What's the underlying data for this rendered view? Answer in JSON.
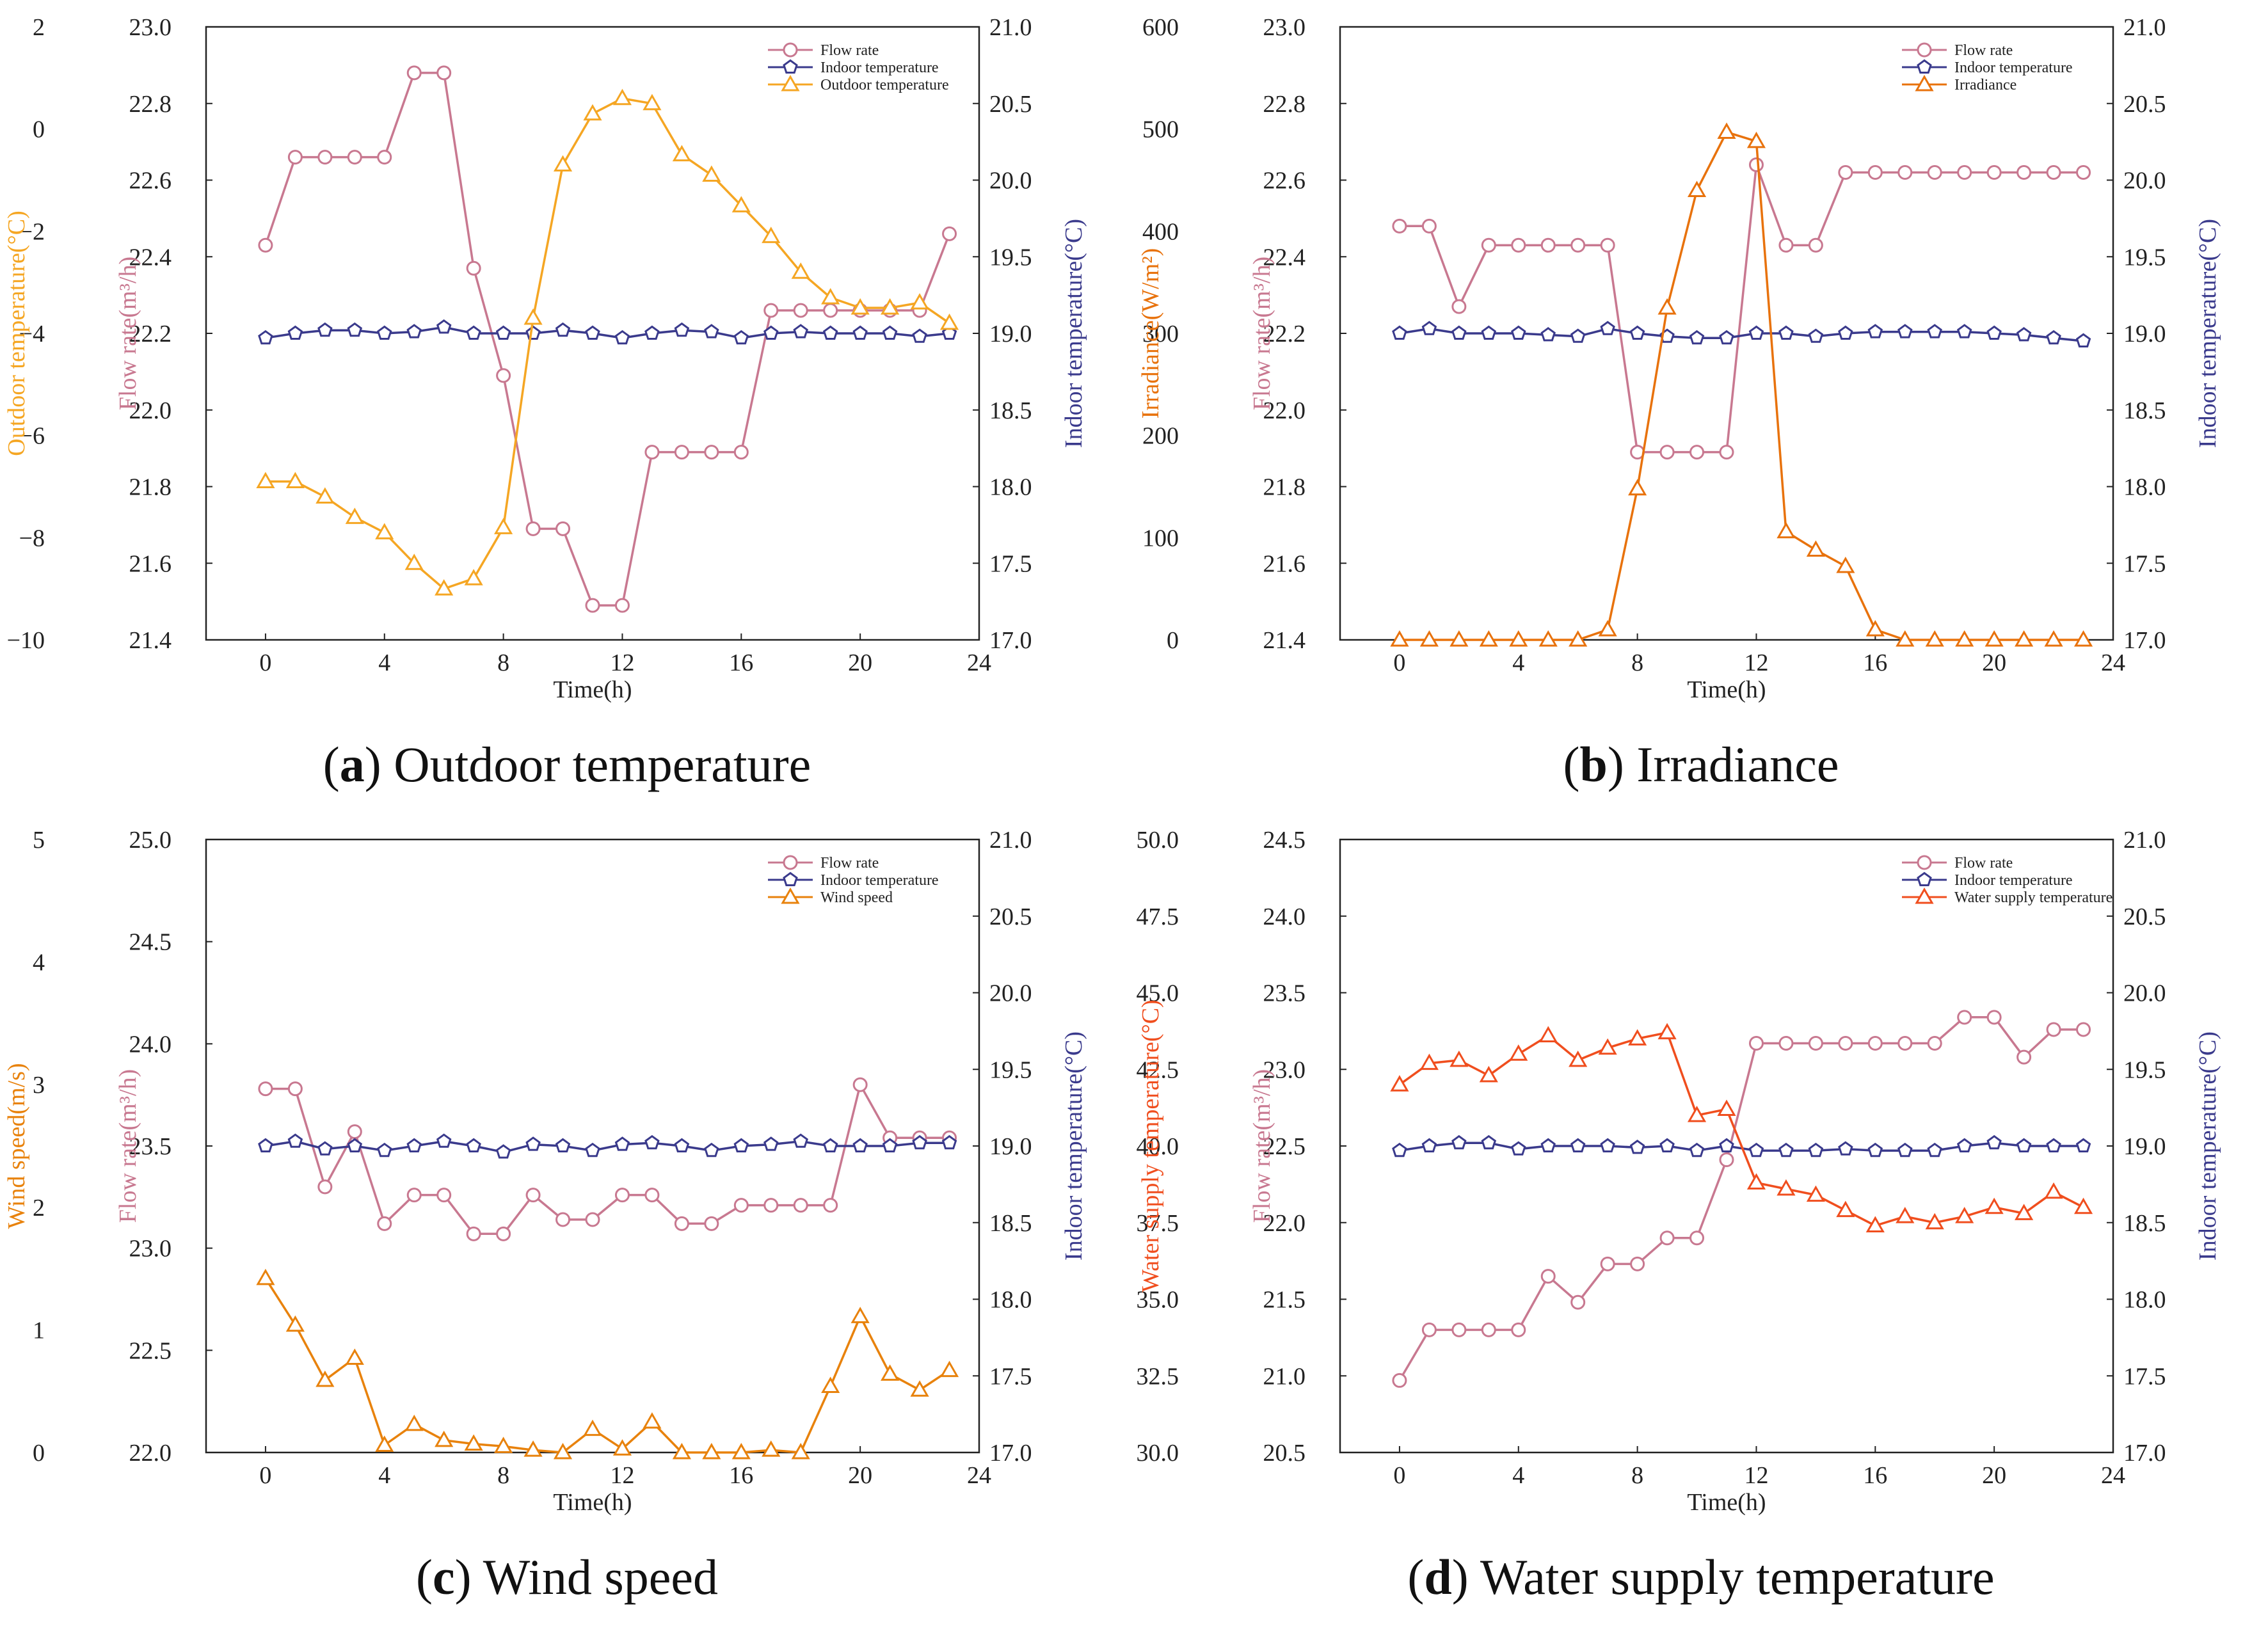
{
  "colors": {
    "flow": "#c87890",
    "indoor": "#3a3a8c",
    "outdoor": "#f5a623",
    "irradiance": "#e8720c",
    "wind": "#e8820c",
    "water": "#f04e1e",
    "axis": "#222222"
  },
  "captions": [
    {
      "letter": "a",
      "text": "Outdoor temperature"
    },
    {
      "letter": "b",
      "text": "Irradiance"
    },
    {
      "letter": "c",
      "text": "Wind speed"
    },
    {
      "letter": "d",
      "text": "Water supply temperature"
    }
  ],
  "chart_data": [
    {
      "type": "line",
      "xlabel": "Time(h)",
      "xlim": [
        -2,
        24
      ],
      "xticks": [
        0,
        4,
        8,
        12,
        16,
        20,
        24
      ],
      "axes": {
        "outer": {
          "label": "Outdoor temperature(°C)",
          "lim": [
            -10,
            2
          ],
          "ticks": [
            -10,
            -8,
            -6,
            -4,
            -2,
            0,
            2
          ],
          "tick_labels": [
            "−10",
            "−8",
            "−6",
            "−4",
            "−2",
            "0",
            "2"
          ]
        },
        "left": {
          "label": "Flow rate(m³/h)",
          "lim": [
            21.4,
            23.0
          ],
          "ticks": [
            21.4,
            21.6,
            21.8,
            22.0,
            22.2,
            22.4,
            22.6,
            22.8,
            23.0
          ],
          "tick_labels": [
            "21.4",
            "21.6",
            "21.8",
            "22.0",
            "22.2",
            "22.4",
            "22.6",
            "22.8",
            "23.0"
          ]
        },
        "right": {
          "label": "Indoor temperature(°C)",
          "lim": [
            17.0,
            21.0
          ],
          "ticks": [
            17.0,
            17.5,
            18.0,
            18.5,
            19.0,
            19.5,
            20.0,
            20.5,
            21.0
          ],
          "tick_labels": [
            "17.0",
            "17.5",
            "18.0",
            "18.5",
            "19.0",
            "19.5",
            "20.0",
            "20.5",
            "21.0"
          ]
        }
      },
      "x": [
        0,
        1,
        2,
        3,
        4,
        5,
        6,
        7,
        8,
        9,
        10,
        11,
        12,
        13,
        14,
        15,
        16,
        17,
        18,
        19,
        20,
        21,
        22,
        23
      ],
      "series": [
        {
          "name": "Flow rate",
          "axis": "left",
          "marker": "circle",
          "color_key": "flow",
          "values": [
            22.43,
            22.66,
            22.66,
            22.66,
            22.66,
            22.88,
            22.88,
            22.37,
            22.09,
            21.69,
            21.69,
            21.49,
            21.49,
            21.89,
            21.89,
            21.89,
            21.89,
            22.26,
            22.26,
            22.26,
            22.26,
            22.26,
            22.26,
            22.46
          ]
        },
        {
          "name": "Indoor temperature",
          "axis": "right",
          "marker": "pentagon",
          "color_key": "indoor",
          "values": [
            18.97,
            19.0,
            19.02,
            19.02,
            19.0,
            19.01,
            19.04,
            19.0,
            19.0,
            19.0,
            19.02,
            19.0,
            18.97,
            19.0,
            19.02,
            19.01,
            18.97,
            19.0,
            19.01,
            19.0,
            19.0,
            19.0,
            18.98,
            19.0
          ]
        },
        {
          "name": "Outdoor temperature",
          "axis": "outer",
          "marker": "triangle",
          "color_key": "outdoor",
          "values": [
            -6.9,
            -6.9,
            -7.2,
            -7.6,
            -7.9,
            -8.5,
            -9.0,
            -8.8,
            -7.8,
            -3.7,
            -0.7,
            0.3,
            0.6,
            0.5,
            -0.5,
            -0.9,
            -1.5,
            -2.1,
            -2.8,
            -3.3,
            -3.5,
            -3.5,
            -3.4,
            -3.8
          ]
        }
      ]
    },
    {
      "type": "line",
      "xlabel": "Time(h)",
      "xlim": [
        -2,
        24
      ],
      "xticks": [
        0,
        4,
        8,
        12,
        16,
        20,
        24
      ],
      "axes": {
        "outer": {
          "label": "Irradiance(W/m²)",
          "lim": [
            0,
            600
          ],
          "ticks": [
            0,
            100,
            200,
            300,
            400,
            500,
            600
          ],
          "tick_labels": [
            "0",
            "100",
            "200",
            "300",
            "400",
            "500",
            "600"
          ]
        },
        "left": {
          "label": "Flow rate(m³/h)",
          "lim": [
            21.4,
            23.0
          ],
          "ticks": [
            21.4,
            21.6,
            21.8,
            22.0,
            22.2,
            22.4,
            22.6,
            22.8,
            23.0
          ],
          "tick_labels": [
            "21.4",
            "21.6",
            "21.8",
            "22.0",
            "22.2",
            "22.4",
            "22.6",
            "22.8",
            "23.0"
          ]
        },
        "right": {
          "label": "Indoor temperature(°C)",
          "lim": [
            17.0,
            21.0
          ],
          "ticks": [
            17.0,
            17.5,
            18.0,
            18.5,
            19.0,
            19.5,
            20.0,
            20.5,
            21.0
          ],
          "tick_labels": [
            "17.0",
            "17.5",
            "18.0",
            "18.5",
            "19.0",
            "19.5",
            "20.0",
            "20.5",
            "21.0"
          ]
        }
      },
      "x": [
        0,
        1,
        2,
        3,
        4,
        5,
        6,
        7,
        8,
        9,
        10,
        11,
        12,
        13,
        14,
        15,
        16,
        17,
        18,
        19,
        20,
        21,
        22,
        23
      ],
      "series": [
        {
          "name": "Flow rate",
          "axis": "left",
          "marker": "circle",
          "color_key": "flow",
          "values": [
            22.48,
            22.48,
            22.27,
            22.43,
            22.43,
            22.43,
            22.43,
            22.43,
            21.89,
            21.89,
            21.89,
            21.89,
            22.64,
            22.43,
            22.43,
            22.62,
            22.62,
            22.62,
            22.62,
            22.62,
            22.62,
            22.62,
            22.62,
            22.62
          ]
        },
        {
          "name": "Indoor temperature",
          "axis": "right",
          "marker": "pentagon",
          "color_key": "indoor",
          "values": [
            19.0,
            19.03,
            19.0,
            19.0,
            19.0,
            18.99,
            18.98,
            19.03,
            19.0,
            18.98,
            18.97,
            18.97,
            19.0,
            19.0,
            18.98,
            19.0,
            19.01,
            19.01,
            19.01,
            19.01,
            19.0,
            18.99,
            18.97,
            18.95
          ]
        },
        {
          "name": "Irradiance",
          "axis": "outer",
          "marker": "triangle",
          "color_key": "irradiance",
          "values": [
            0,
            0,
            0,
            0,
            0,
            0,
            0,
            10,
            148,
            325,
            440,
            497,
            488,
            106,
            88,
            72,
            10,
            0,
            0,
            0,
            0,
            0,
            0,
            0
          ]
        }
      ]
    },
    {
      "type": "line",
      "xlabel": "Time(h)",
      "xlim": [
        -2,
        24
      ],
      "xticks": [
        0,
        4,
        8,
        12,
        16,
        20,
        24
      ],
      "axes": {
        "outer": {
          "label": "Wind speed(m/s)",
          "lim": [
            0,
            5
          ],
          "ticks": [
            0,
            1,
            2,
            3,
            4,
            5
          ],
          "tick_labels": [
            "0",
            "1",
            "2",
            "3",
            "4",
            "5"
          ]
        },
        "left": {
          "label": "Flow rate(m³/h)",
          "lim": [
            22.0,
            25.0
          ],
          "ticks": [
            22.0,
            22.5,
            23.0,
            23.5,
            24.0,
            24.5,
            25.0
          ],
          "tick_labels": [
            "22.0",
            "22.5",
            "23.0",
            "23.5",
            "24.0",
            "24.5",
            "25.0"
          ]
        },
        "right": {
          "label": "Indoor temperature(°C)",
          "lim": [
            17.0,
            21.0
          ],
          "ticks": [
            17.0,
            17.5,
            18.0,
            18.5,
            19.0,
            19.5,
            20.0,
            20.5,
            21.0
          ],
          "tick_labels": [
            "17.0",
            "17.5",
            "18.0",
            "18.5",
            "19.0",
            "19.5",
            "20.0",
            "20.5",
            "21.0"
          ]
        }
      },
      "x": [
        0,
        1,
        2,
        3,
        4,
        5,
        6,
        7,
        8,
        9,
        10,
        11,
        12,
        13,
        14,
        15,
        16,
        17,
        18,
        19,
        20,
        21,
        22,
        23
      ],
      "series": [
        {
          "name": "Flow rate",
          "axis": "left",
          "marker": "circle",
          "color_key": "flow",
          "values": [
            23.78,
            23.78,
            23.3,
            23.57,
            23.12,
            23.26,
            23.26,
            23.07,
            23.07,
            23.26,
            23.14,
            23.14,
            23.26,
            23.26,
            23.12,
            23.12,
            23.21,
            23.21,
            23.21,
            23.21,
            23.8,
            23.54,
            23.54,
            23.54
          ]
        },
        {
          "name": "Indoor temperature",
          "axis": "right",
          "marker": "pentagon",
          "color_key": "indoor",
          "values": [
            19.0,
            19.03,
            18.98,
            19.0,
            18.97,
            19.0,
            19.03,
            19.0,
            18.96,
            19.01,
            19.0,
            18.97,
            19.01,
            19.02,
            19.0,
            18.97,
            19.0,
            19.01,
            19.03,
            19.0,
            19.0,
            19.0,
            19.02,
            19.02
          ]
        },
        {
          "name": "Wind speed",
          "axis": "outer",
          "marker": "triangle",
          "color_key": "wind",
          "values": [
            1.42,
            1.04,
            0.59,
            0.77,
            0.06,
            0.23,
            0.1,
            0.07,
            0.05,
            0.02,
            0.0,
            0.19,
            0.03,
            0.25,
            0.0,
            0.0,
            0.0,
            0.02,
            0.0,
            0.54,
            1.11,
            0.64,
            0.51,
            0.67
          ]
        }
      ]
    },
    {
      "type": "line",
      "xlabel": "Time(h)",
      "xlim": [
        -2,
        24
      ],
      "xticks": [
        0,
        4,
        8,
        12,
        16,
        20,
        24
      ],
      "axes": {
        "outer": {
          "label": "Water supply temperature(°C)",
          "lim": [
            30.0,
            50.0
          ],
          "ticks": [
            30.0,
            32.5,
            35.0,
            37.5,
            40.0,
            42.5,
            45.0,
            47.5,
            50.0
          ],
          "tick_labels": [
            "30.0",
            "32.5",
            "35.0",
            "37.5",
            "40.0",
            "42.5",
            "45.0",
            "47.5",
            "50.0"
          ]
        },
        "left": {
          "label": "Flow rate(m³/h)",
          "lim": [
            20.5,
            24.5
          ],
          "ticks": [
            20.5,
            21.0,
            21.5,
            22.0,
            22.5,
            23.0,
            23.5,
            24.0,
            24.5
          ],
          "tick_labels": [
            "20.5",
            "21.0",
            "21.5",
            "22.0",
            "22.5",
            "23.0",
            "23.5",
            "24.0",
            "24.5"
          ]
        },
        "right": {
          "label": "Indoor temperature(°C)",
          "lim": [
            17.0,
            21.0
          ],
          "ticks": [
            17.0,
            17.5,
            18.0,
            18.5,
            19.0,
            19.5,
            20.0,
            20.5,
            21.0
          ],
          "tick_labels": [
            "17.0",
            "17.5",
            "18.0",
            "18.5",
            "19.0",
            "19.5",
            "20.0",
            "20.5",
            "21.0"
          ]
        }
      },
      "x": [
        0,
        1,
        2,
        3,
        4,
        5,
        6,
        7,
        8,
        9,
        10,
        11,
        12,
        13,
        14,
        15,
        16,
        17,
        18,
        19,
        20,
        21,
        22,
        23
      ],
      "series": [
        {
          "name": "Flow rate",
          "axis": "left",
          "marker": "circle",
          "color_key": "flow",
          "values": [
            20.97,
            21.3,
            21.3,
            21.3,
            21.3,
            21.65,
            21.48,
            21.73,
            21.73,
            21.9,
            21.9,
            22.41,
            23.17,
            23.17,
            23.17,
            23.17,
            23.17,
            23.17,
            23.17,
            23.34,
            23.34,
            23.08,
            23.26,
            23.26
          ]
        },
        {
          "name": "Indoor temperature",
          "axis": "right",
          "marker": "pentagon",
          "color_key": "indoor",
          "values": [
            18.97,
            19.0,
            19.02,
            19.02,
            18.98,
            19.0,
            19.0,
            19.0,
            18.99,
            19.0,
            18.97,
            19.0,
            18.97,
            18.97,
            18.97,
            18.98,
            18.97,
            18.97,
            18.97,
            19.0,
            19.02,
            19.0,
            19.0,
            19.0
          ]
        },
        {
          "name": "Water supply temperature",
          "axis": "outer",
          "marker": "triangle",
          "color_key": "water",
          "values": [
            42.0,
            42.7,
            42.8,
            42.3,
            43.0,
            43.6,
            42.8,
            43.2,
            43.5,
            43.7,
            41.0,
            41.2,
            38.8,
            38.6,
            38.4,
            37.9,
            37.4,
            37.7,
            37.5,
            37.7,
            38.0,
            37.8,
            38.5,
            38.0
          ]
        }
      ]
    }
  ]
}
